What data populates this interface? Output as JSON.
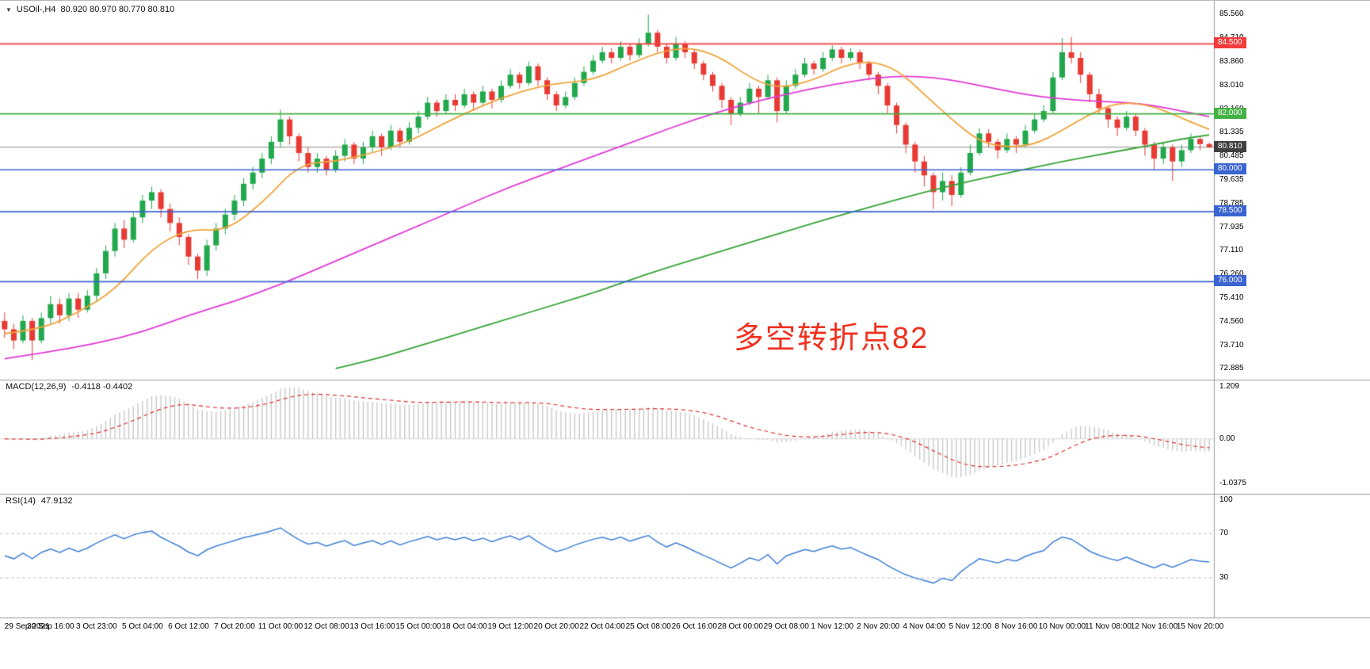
{
  "header": {
    "collapse_icon": "▼",
    "symbol": "USOil-,H4",
    "ohlc": "80.920 80.970 80.770 80.810"
  },
  "colors": {
    "background": "#ffffff",
    "up_candle": "#22a84c",
    "down_candle": "#e83a33",
    "ma_fast": "#f0a43c",
    "ma_medium": "#e23ad6",
    "ma_slow": "#37a437",
    "current_price_line": "#8c8c8c",
    "current_price_badge": "#3f3f3f",
    "macd_histogram": "#c9c9c9",
    "macd_signal": "#e03030",
    "macd_zero_line": "#d8d8d8",
    "rsi_line": "#3f7fd6",
    "rsi_levels": "#c4c4c4",
    "pane_border": "#9a9a9a",
    "axis_text": "#000000"
  },
  "chart_data": {
    "type": "candlestick",
    "symbol": "USOil",
    "timeframe": "H4",
    "current_bar": {
      "open": 80.92,
      "high": 80.97,
      "low": 80.77,
      "close": 80.81
    },
    "label_every_n_bars": 5,
    "x_labels": [
      "29 Sep 2021",
      "30 Sep 16:00",
      "3 Oct 23:00",
      "5 Oct 04:00",
      "6 Oct 12:00",
      "7 Oct 20:00",
      "11 Oct 00:00",
      "12 Oct 08:00",
      "13 Oct 16:00",
      "15 Oct 00:00",
      "18 Oct 04:00",
      "19 Oct 12:00",
      "20 Oct 20:00",
      "22 Oct 04:00",
      "25 Oct 08:00",
      "26 Oct 16:00",
      "28 Oct 00:00",
      "29 Oct 08:00",
      "1 Nov 12:00",
      "2 Nov 20:00",
      "4 Nov 04:00",
      "5 Nov 12:00",
      "8 Nov 16:00",
      "10 Nov 00:00",
      "11 Nov 08:00",
      "12 Nov 16:00",
      "15 Nov 20:00"
    ],
    "candles": [
      [
        74.6,
        74.9,
        74.0,
        74.3
      ],
      [
        74.3,
        74.5,
        73.6,
        73.9
      ],
      [
        73.9,
        74.8,
        73.8,
        74.6
      ],
      [
        74.6,
        74.7,
        73.2,
        73.9
      ],
      [
        73.9,
        74.9,
        73.8,
        74.7
      ],
      [
        74.7,
        75.5,
        74.5,
        75.2
      ],
      [
        75.2,
        75.4,
        74.5,
        74.8
      ],
      [
        74.8,
        75.6,
        74.6,
        75.4
      ],
      [
        75.4,
        75.6,
        74.7,
        75.0
      ],
      [
        75.0,
        75.7,
        74.9,
        75.5
      ],
      [
        75.5,
        76.5,
        75.3,
        76.3
      ],
      [
        76.3,
        77.3,
        76.1,
        77.1
      ],
      [
        77.1,
        78.1,
        76.9,
        77.9
      ],
      [
        77.9,
        78.2,
        77.2,
        77.5
      ],
      [
        77.5,
        78.5,
        77.4,
        78.3
      ],
      [
        78.3,
        79.1,
        78.1,
        78.9
      ],
      [
        78.9,
        79.4,
        78.6,
        79.2
      ],
      [
        79.2,
        79.3,
        78.3,
        78.6
      ],
      [
        78.6,
        78.8,
        77.8,
        78.1
      ],
      [
        78.1,
        78.3,
        77.3,
        77.6
      ],
      [
        77.6,
        77.7,
        76.6,
        76.9
      ],
      [
        76.9,
        77.0,
        76.1,
        76.4
      ],
      [
        76.4,
        77.5,
        76.2,
        77.3
      ],
      [
        77.3,
        78.1,
        77.1,
        77.9
      ],
      [
        77.9,
        78.6,
        77.7,
        78.4
      ],
      [
        78.4,
        79.1,
        78.2,
        78.9
      ],
      [
        78.9,
        79.7,
        78.7,
        79.5
      ],
      [
        79.5,
        80.1,
        79.3,
        79.9
      ],
      [
        79.9,
        80.6,
        79.7,
        80.4
      ],
      [
        80.4,
        81.2,
        80.2,
        81.0
      ],
      [
        81.0,
        82.15,
        80.8,
        81.8
      ],
      [
        81.8,
        81.9,
        80.9,
        81.2
      ],
      [
        81.2,
        81.3,
        80.3,
        80.6
      ],
      [
        80.6,
        80.8,
        79.9,
        80.1
      ],
      [
        80.1,
        80.6,
        79.9,
        80.4
      ],
      [
        80.4,
        80.5,
        79.8,
        80.0
      ],
      [
        80.0,
        80.7,
        79.9,
        80.5
      ],
      [
        80.5,
        81.1,
        80.3,
        80.9
      ],
      [
        80.9,
        81.0,
        80.2,
        80.4
      ],
      [
        80.4,
        81.0,
        80.2,
        80.8
      ],
      [
        80.8,
        81.4,
        80.6,
        81.2
      ],
      [
        81.2,
        81.3,
        80.5,
        80.8
      ],
      [
        80.8,
        81.6,
        80.7,
        81.4
      ],
      [
        81.4,
        81.5,
        80.8,
        81.0
      ],
      [
        81.0,
        81.7,
        80.9,
        81.5
      ],
      [
        81.5,
        82.1,
        81.3,
        81.9
      ],
      [
        81.9,
        82.6,
        81.8,
        82.4
      ],
      [
        82.4,
        82.5,
        81.9,
        82.1
      ],
      [
        82.1,
        82.7,
        82.0,
        82.5
      ],
      [
        82.5,
        82.7,
        82.1,
        82.3
      ],
      [
        82.3,
        82.9,
        82.2,
        82.7
      ],
      [
        82.7,
        82.8,
        82.1,
        82.4
      ],
      [
        82.4,
        83.0,
        82.3,
        82.8
      ],
      [
        82.8,
        82.9,
        82.2,
        82.5
      ],
      [
        82.5,
        83.2,
        82.4,
        83.0
      ],
      [
        83.0,
        83.6,
        82.9,
        83.4
      ],
      [
        83.4,
        83.5,
        82.9,
        83.1
      ],
      [
        83.1,
        83.87,
        83.0,
        83.7
      ],
      [
        83.7,
        83.8,
        83.0,
        83.2
      ],
      [
        83.2,
        83.3,
        82.5,
        82.7
      ],
      [
        82.7,
        82.8,
        82.1,
        82.3
      ],
      [
        82.3,
        82.8,
        82.2,
        82.6
      ],
      [
        82.6,
        83.3,
        82.5,
        83.1
      ],
      [
        83.1,
        83.7,
        83.0,
        83.5
      ],
      [
        83.5,
        84.1,
        83.4,
        83.9
      ],
      [
        83.9,
        84.4,
        83.8,
        84.2
      ],
      [
        84.2,
        84.35,
        83.8,
        84.0
      ],
      [
        84.0,
        84.6,
        83.9,
        84.4
      ],
      [
        84.4,
        84.5,
        83.9,
        84.1
      ],
      [
        84.1,
        84.7,
        84.0,
        84.5
      ],
      [
        84.5,
        85.55,
        84.4,
        84.9
      ],
      [
        84.9,
        85.0,
        84.2,
        84.4
      ],
      [
        84.4,
        84.5,
        83.8,
        84.0
      ],
      [
        84.0,
        84.75,
        83.9,
        84.5
      ],
      [
        84.5,
        84.6,
        84.0,
        84.2
      ],
      [
        84.2,
        84.3,
        83.6,
        83.8
      ],
      [
        83.8,
        83.9,
        83.2,
        83.4
      ],
      [
        83.4,
        83.5,
        82.8,
        83.0
      ],
      [
        83.0,
        83.1,
        82.2,
        82.5
      ],
      [
        82.5,
        82.6,
        81.6,
        82.0
      ],
      [
        82.0,
        82.6,
        81.9,
        82.4
      ],
      [
        82.4,
        83.1,
        82.3,
        82.9
      ],
      [
        82.9,
        83.0,
        82.0,
        82.6
      ],
      [
        82.6,
        83.4,
        82.5,
        83.2
      ],
      [
        83.2,
        83.3,
        81.7,
        82.1
      ],
      [
        82.1,
        83.2,
        82.0,
        83.0
      ],
      [
        83.0,
        83.6,
        82.9,
        83.4
      ],
      [
        83.4,
        84.0,
        83.3,
        83.8
      ],
      [
        83.8,
        83.9,
        83.4,
        83.6
      ],
      [
        83.6,
        84.2,
        83.5,
        84.0
      ],
      [
        84.0,
        84.45,
        83.9,
        84.3
      ],
      [
        84.3,
        84.4,
        83.8,
        84.0
      ],
      [
        84.0,
        84.35,
        83.9,
        84.2
      ],
      [
        84.2,
        84.3,
        83.6,
        83.8
      ],
      [
        83.8,
        83.9,
        83.2,
        83.4
      ],
      [
        83.4,
        83.5,
        82.7,
        83.0
      ],
      [
        83.0,
        83.1,
        82.0,
        82.3
      ],
      [
        82.3,
        82.4,
        81.3,
        81.6
      ],
      [
        81.6,
        81.7,
        80.6,
        80.9
      ],
      [
        80.9,
        81.0,
        79.9,
        80.3
      ],
      [
        80.3,
        80.5,
        79.4,
        79.8
      ],
      [
        79.8,
        79.9,
        78.6,
        79.2
      ],
      [
        79.2,
        79.9,
        78.9,
        79.6
      ],
      [
        79.6,
        79.8,
        78.7,
        79.1
      ],
      [
        79.1,
        80.1,
        79.0,
        79.9
      ],
      [
        79.9,
        80.9,
        79.8,
        80.6
      ],
      [
        80.6,
        81.5,
        80.5,
        81.3
      ],
      [
        81.3,
        81.45,
        80.8,
        81.0
      ],
      [
        81.0,
        81.1,
        80.4,
        80.7
      ],
      [
        80.7,
        81.3,
        80.6,
        81.1
      ],
      [
        81.1,
        81.2,
        80.6,
        80.9
      ],
      [
        80.9,
        81.6,
        80.8,
        81.4
      ],
      [
        81.4,
        82.0,
        81.3,
        81.8
      ],
      [
        81.8,
        82.3,
        81.7,
        82.1
      ],
      [
        82.1,
        83.5,
        82.0,
        83.3
      ],
      [
        83.3,
        84.7,
        83.2,
        84.2
      ],
      [
        84.2,
        84.75,
        83.8,
        84.0
      ],
      [
        84.0,
        84.2,
        83.1,
        83.4
      ],
      [
        83.4,
        83.5,
        82.4,
        82.7
      ],
      [
        82.7,
        82.9,
        82.0,
        82.2
      ],
      [
        82.2,
        82.3,
        81.5,
        81.8
      ],
      [
        81.8,
        81.9,
        81.2,
        81.5
      ],
      [
        81.5,
        82.1,
        81.4,
        81.9
      ],
      [
        81.9,
        82.0,
        81.2,
        81.4
      ],
      [
        81.4,
        81.5,
        80.5,
        80.9
      ],
      [
        80.9,
        81.0,
        80.0,
        80.4
      ],
      [
        80.4,
        81.0,
        80.2,
        80.8
      ],
      [
        80.8,
        80.9,
        79.6,
        80.3
      ],
      [
        80.3,
        80.9,
        80.1,
        80.7
      ],
      [
        80.7,
        81.3,
        80.6,
        81.1
      ],
      [
        81.1,
        81.2,
        80.7,
        80.92
      ],
      [
        80.92,
        80.97,
        80.77,
        80.81
      ]
    ],
    "moving_averages": [
      {
        "name": "ma-slow-green",
        "color": "#37a437",
        "points": [
          [
            36,
            72.9
          ],
          [
            40,
            73.2
          ],
          [
            45,
            73.7
          ],
          [
            50,
            74.2
          ],
          [
            55,
            74.7
          ],
          [
            60,
            75.2
          ],
          [
            65,
            75.7
          ],
          [
            70,
            76.3
          ],
          [
            75,
            76.8
          ],
          [
            80,
            77.3
          ],
          [
            85,
            77.8
          ],
          [
            90,
            78.3
          ],
          [
            95,
            78.75
          ],
          [
            100,
            79.2
          ],
          [
            105,
            79.6
          ],
          [
            110,
            79.95
          ],
          [
            115,
            80.3
          ],
          [
            120,
            80.6
          ],
          [
            125,
            80.9
          ],
          [
            128,
            81.1
          ],
          [
            131,
            81.25
          ]
        ]
      },
      {
        "name": "ma-medium-magenta",
        "color": "#e23ad6",
        "points": [
          [
            0,
            73.25
          ],
          [
            5,
            73.5
          ],
          [
            10,
            73.8
          ],
          [
            15,
            74.2
          ],
          [
            20,
            74.8
          ],
          [
            25,
            75.3
          ],
          [
            30,
            75.9
          ],
          [
            35,
            76.6
          ],
          [
            40,
            77.3
          ],
          [
            45,
            78.0
          ],
          [
            50,
            78.7
          ],
          [
            55,
            79.4
          ],
          [
            60,
            80.0
          ],
          [
            65,
            80.6
          ],
          [
            70,
            81.2
          ],
          [
            75,
            81.8
          ],
          [
            80,
            82.3
          ],
          [
            85,
            82.7
          ],
          [
            90,
            83.05
          ],
          [
            95,
            83.3
          ],
          [
            98,
            83.35
          ],
          [
            101,
            83.3
          ],
          [
            104,
            83.15
          ],
          [
            107,
            82.95
          ],
          [
            110,
            82.75
          ],
          [
            113,
            82.6
          ],
          [
            116,
            82.5
          ],
          [
            119,
            82.45
          ],
          [
            122,
            82.4
          ],
          [
            125,
            82.3
          ],
          [
            128,
            82.1
          ],
          [
            131,
            81.9
          ]
        ]
      },
      {
        "name": "ma-fast-orange",
        "color": "#f0a43c",
        "points": [
          [
            0,
            74.15
          ],
          [
            4,
            74.3
          ],
          [
            8,
            74.9
          ],
          [
            12,
            75.7
          ],
          [
            16,
            77.2
          ],
          [
            20,
            77.9
          ],
          [
            24,
            77.8
          ],
          [
            28,
            78.8
          ],
          [
            32,
            80.2
          ],
          [
            36,
            80.3
          ],
          [
            40,
            80.6
          ],
          [
            44,
            81.0
          ],
          [
            48,
            81.7
          ],
          [
            52,
            82.3
          ],
          [
            56,
            82.8
          ],
          [
            60,
            83.1
          ],
          [
            64,
            83.2
          ],
          [
            68,
            83.8
          ],
          [
            72,
            84.3
          ],
          [
            75,
            84.35
          ],
          [
            78,
            84.0
          ],
          [
            81,
            83.3
          ],
          [
            84,
            82.9
          ],
          [
            88,
            83.2
          ],
          [
            91,
            83.7
          ],
          [
            94,
            83.9
          ],
          [
            97,
            83.6
          ],
          [
            100,
            82.7
          ],
          [
            103,
            81.8
          ],
          [
            106,
            81.0
          ],
          [
            109,
            80.8
          ],
          [
            112,
            80.9
          ],
          [
            115,
            81.4
          ],
          [
            118,
            82.0
          ],
          [
            121,
            82.4
          ],
          [
            124,
            82.35
          ],
          [
            127,
            82.0
          ],
          [
            129,
            81.7
          ],
          [
            131,
            81.45
          ]
        ]
      }
    ],
    "horizontal_lines": [
      {
        "price": 84.5,
        "label": "84.500",
        "color": "#f43b3b"
      },
      {
        "price": 82.0,
        "label": "82.000",
        "color": "#44b144"
      },
      {
        "price": 80.0,
        "label": "80.000",
        "color": "#3a64cf"
      },
      {
        "price": 78.5,
        "label": "78.500",
        "color": "#3a64cf"
      },
      {
        "price": 76.0,
        "label": "76.000",
        "color": "#3a64cf"
      }
    ],
    "current_price_line": {
      "price": 80.81,
      "label": "80.810"
    },
    "price_axis": {
      "tick_labels": [
        "85.560",
        "84.710",
        "83.860",
        "83.010",
        "82.160",
        "81.335",
        "80.485",
        "79.635",
        "78.785",
        "77.935",
        "77.110",
        "76.260",
        "75.410",
        "74.560",
        "73.710",
        "72.885"
      ]
    },
    "macd": {
      "name": "MACD(12,26,9)",
      "current_values": "-0.4118 -0.4402",
      "params": {
        "fast": 12,
        "slow": 26,
        "signal": 9
      },
      "axis_labels": [
        {
          "text": "1.209",
          "value": 1.209
        },
        {
          "text": "0.00",
          "value": 0
        },
        {
          "text": "-1.0375",
          "value": -1.0375
        }
      ],
      "scale_max": 1.209,
      "scale_min": -1.0375
    },
    "rsi": {
      "name": "RSI(14)",
      "current_value": "47.9132",
      "period": 14,
      "levels": [
        70,
        30
      ],
      "axis_labels": [
        {
          "text": "100",
          "value": 100
        },
        {
          "text": "70",
          "value": 70
        },
        {
          "text": "30",
          "value": 30
        }
      ]
    },
    "annotation": {
      "text": "多空转折点82",
      "color": "#f0301f"
    }
  }
}
